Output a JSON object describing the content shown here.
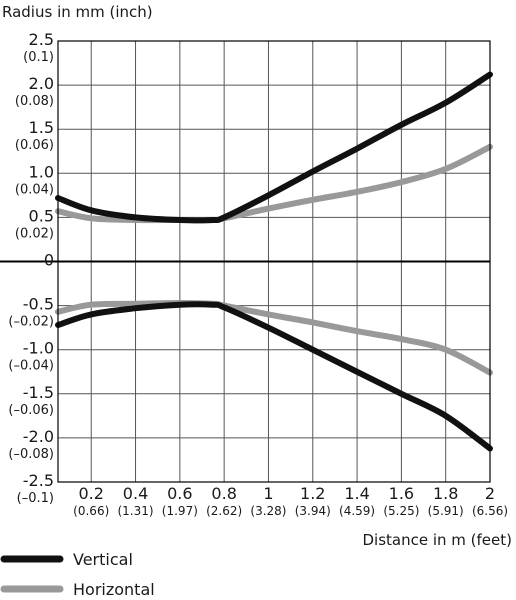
{
  "chart_data": {
    "type": "line",
    "ylabel": "Radius in mm (inch)",
    "xlabel": "Distance in m (feet)",
    "xlim": [
      0.05,
      2.0
    ],
    "ylim": [
      -2.5,
      2.5
    ],
    "grid": true,
    "legend_position": "bottom-left",
    "x_ticks": [
      {
        "value": 0.2,
        "label": "0.2",
        "sublabel": "(0.66)"
      },
      {
        "value": 0.4,
        "label": "0.4",
        "sublabel": "(1.31)"
      },
      {
        "value": 0.6,
        "label": "0.6",
        "sublabel": "(1.97)"
      },
      {
        "value": 0.8,
        "label": "0.8",
        "sublabel": "(2.62)"
      },
      {
        "value": 1.0,
        "label": "1",
        "sublabel": "(3.28)"
      },
      {
        "value": 1.2,
        "label": "1.2",
        "sublabel": "(3.94)"
      },
      {
        "value": 1.4,
        "label": "1.4",
        "sublabel": "(4.59)"
      },
      {
        "value": 1.6,
        "label": "1.6",
        "sublabel": "(5.25)"
      },
      {
        "value": 1.8,
        "label": "1.8",
        "sublabel": "(5.91)"
      },
      {
        "value": 2.0,
        "label": "2",
        "sublabel": "(6.56)"
      }
    ],
    "y_ticks": [
      {
        "value": 2.5,
        "label": "2.5",
        "sublabel": "(0.1)"
      },
      {
        "value": 2.0,
        "label": "2.0",
        "sublabel": "(0.08)"
      },
      {
        "value": 1.5,
        "label": "1.5",
        "sublabel": "(0.06)"
      },
      {
        "value": 1.0,
        "label": "1.0",
        "sublabel": "(0.04)"
      },
      {
        "value": 0.5,
        "label": "0.5",
        "sublabel": "(0.02)"
      },
      {
        "value": 0,
        "label": "0",
        "sublabel": ""
      },
      {
        "value": -0.5,
        "label": "-0.5",
        "sublabel": "(–0.02)"
      },
      {
        "value": -1.0,
        "label": "-1.0",
        "sublabel": "(–0.04)"
      },
      {
        "value": -1.5,
        "label": "-1.5",
        "sublabel": "(–0.06)"
      },
      {
        "value": -2.0,
        "label": "-2.0",
        "sublabel": "(–0.08)"
      },
      {
        "value": -2.5,
        "label": "-2.5",
        "sublabel": "(–0.1)"
      }
    ],
    "series": [
      {
        "name": "Vertical",
        "color": "#111111",
        "upper": [
          [
            0.05,
            0.72
          ],
          [
            0.2,
            0.58
          ],
          [
            0.4,
            0.5
          ],
          [
            0.6,
            0.47
          ],
          [
            0.75,
            0.47
          ],
          [
            0.8,
            0.5
          ],
          [
            1.0,
            0.75
          ],
          [
            1.2,
            1.02
          ],
          [
            1.4,
            1.28
          ],
          [
            1.6,
            1.55
          ],
          [
            1.8,
            1.8
          ],
          [
            2.0,
            2.12
          ]
        ],
        "lower": [
          [
            0.05,
            -0.72
          ],
          [
            0.2,
            -0.6
          ],
          [
            0.4,
            -0.53
          ],
          [
            0.6,
            -0.49
          ],
          [
            0.75,
            -0.49
          ],
          [
            0.8,
            -0.52
          ],
          [
            1.0,
            -0.75
          ],
          [
            1.2,
            -1.0
          ],
          [
            1.4,
            -1.25
          ],
          [
            1.6,
            -1.5
          ],
          [
            1.8,
            -1.75
          ],
          [
            2.0,
            -2.12
          ]
        ]
      },
      {
        "name": "Horizontal",
        "color": "#999999",
        "upper": [
          [
            0.05,
            0.57
          ],
          [
            0.2,
            0.49
          ],
          [
            0.4,
            0.47
          ],
          [
            0.6,
            0.47
          ],
          [
            0.75,
            0.47
          ],
          [
            0.8,
            0.49
          ],
          [
            1.0,
            0.6
          ],
          [
            1.2,
            0.7
          ],
          [
            1.4,
            0.79
          ],
          [
            1.6,
            0.9
          ],
          [
            1.8,
            1.05
          ],
          [
            2.0,
            1.3
          ]
        ],
        "lower": [
          [
            0.05,
            -0.57
          ],
          [
            0.2,
            -0.49
          ],
          [
            0.4,
            -0.48
          ],
          [
            0.6,
            -0.47
          ],
          [
            0.75,
            -0.48
          ],
          [
            0.8,
            -0.5
          ],
          [
            1.0,
            -0.6
          ],
          [
            1.2,
            -0.69
          ],
          [
            1.4,
            -0.79
          ],
          [
            1.6,
            -0.88
          ],
          [
            1.8,
            -1.0
          ],
          [
            2.0,
            -1.26
          ]
        ]
      }
    ]
  }
}
